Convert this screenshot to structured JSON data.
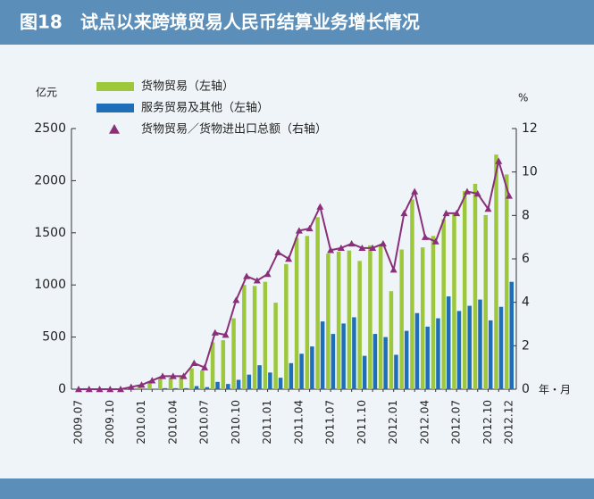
{
  "chart_data": {
    "type": "bar",
    "title": "图18　试点以来跨境贸易人民币结算业务增长情况",
    "y_label": "亿元",
    "y2_label": "%",
    "x_label": "年・月",
    "categories": [
      "2009.07",
      null,
      null,
      "2009.10",
      null,
      null,
      "2010.01",
      null,
      null,
      "2010.04",
      null,
      null,
      "2010.07",
      null,
      null,
      "2010.10",
      null,
      null,
      "2011.01",
      null,
      null,
      "2011.04",
      null,
      null,
      "2011.07",
      null,
      null,
      "2011.10",
      null,
      null,
      "2012.01",
      null,
      null,
      "2012.04",
      null,
      null,
      "2012.07",
      null,
      null,
      "2012.10",
      null,
      "2012.12"
    ],
    "series": [
      {
        "name": "货物贸易（左轴）",
        "color": "#9dc83c",
        "values": [
          0,
          0,
          0,
          0,
          0,
          10,
          30,
          60,
          100,
          110,
          130,
          200,
          180,
          450,
          470,
          680,
          1000,
          990,
          1030,
          830,
          1200,
          1450,
          1470,
          1650,
          1300,
          1320,
          1330,
          1230,
          1380,
          1380,
          940,
          1340,
          1820,
          1360,
          1470,
          1630,
          1680,
          1900,
          1970,
          1670,
          2250,
          2060
        ]
      },
      {
        "name": "服务贸易及其他（左轴）",
        "color": "#1f6fb8",
        "values": [
          0,
          0,
          0,
          0,
          0,
          0,
          5,
          5,
          10,
          10,
          10,
          30,
          20,
          70,
          50,
          90,
          140,
          230,
          160,
          110,
          250,
          340,
          410,
          650,
          530,
          630,
          690,
          320,
          530,
          500,
          330,
          560,
          730,
          600,
          680,
          890,
          750,
          800,
          860,
          660,
          790,
          1030
        ]
      },
      {
        "name": "货物贸易／货物进出口总额（右轴）",
        "color": "#8b2f7a",
        "type": "line",
        "marker": "triangle",
        "axis": "y2",
        "values": [
          0,
          0,
          0,
          0,
          0,
          0.1,
          0.2,
          0.4,
          0.6,
          0.6,
          0.6,
          1.2,
          1.0,
          2.6,
          2.5,
          4.1,
          5.2,
          5.0,
          5.3,
          6.3,
          6.0,
          7.3,
          7.4,
          8.4,
          6.4,
          6.5,
          6.7,
          6.5,
          6.5,
          6.7,
          5.5,
          8.1,
          9.1,
          7.0,
          6.8,
          8.1,
          8.1,
          9.1,
          9.0,
          8.3,
          10.5,
          8.9
        ]
      }
    ],
    "ylim": [
      0,
      2500
    ],
    "yticks": [
      0,
      500,
      1000,
      1500,
      2000,
      2500
    ],
    "y2lim": [
      0,
      12
    ],
    "y2ticks": [
      0,
      2,
      4,
      6,
      8,
      10,
      12
    ]
  }
}
